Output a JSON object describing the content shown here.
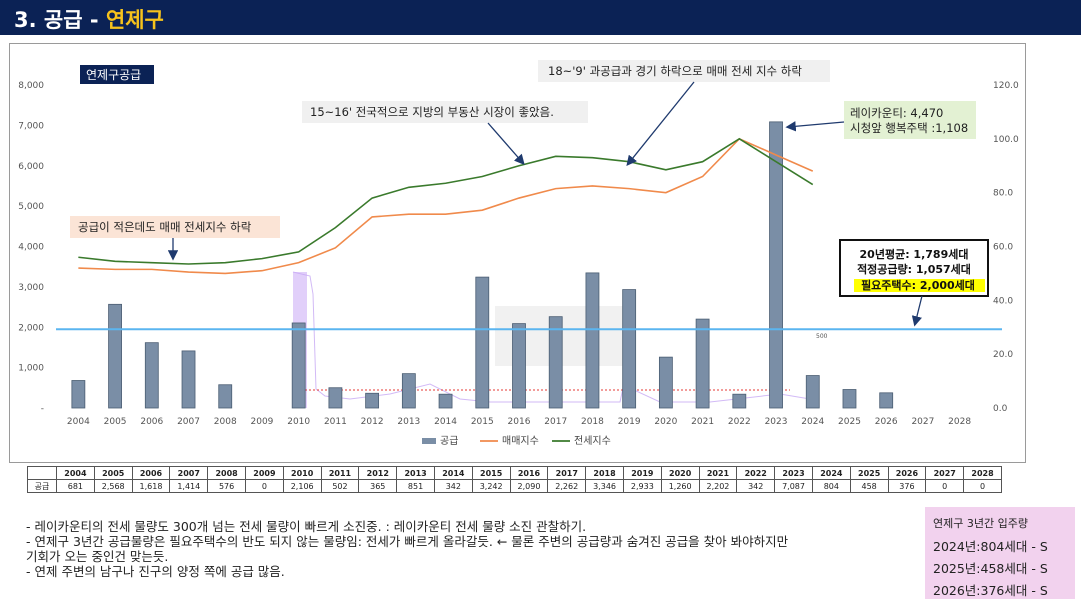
{
  "header": {
    "title_prefix": "3. 공급 - ",
    "title_accent": "연제구"
  },
  "chart_data": {
    "type": "bar",
    "title": "연제구공급",
    "categories": [
      "2004",
      "2005",
      "2006",
      "2007",
      "2008",
      "2009",
      "2010",
      "2011",
      "2012",
      "2013",
      "2014",
      "2015",
      "2016",
      "2017",
      "2018",
      "2019",
      "2020",
      "2021",
      "2022",
      "2023",
      "2024",
      "2025",
      "2026",
      "2027",
      "2028"
    ],
    "series": [
      {
        "name": "공급",
        "kind": "bar",
        "axis": "left",
        "color": "#7a8ea6",
        "values": [
          681,
          2568,
          1618,
          1414,
          576,
          0,
          2106,
          502,
          365,
          851,
          342,
          3242,
          2090,
          2262,
          3346,
          2933,
          1260,
          2202,
          342,
          7087,
          804,
          458,
          376,
          0,
          0
        ]
      },
      {
        "name": "매매지수",
        "kind": "line",
        "axis": "right",
        "color": "#f08a4b",
        "values": [
          52,
          51.5,
          51.5,
          50.5,
          50,
          51,
          54,
          59.5,
          71,
          72,
          72,
          73.5,
          78,
          81.5,
          82.5,
          81.5,
          80,
          86,
          100,
          94,
          88,
          null,
          null,
          null,
          null
        ]
      },
      {
        "name": "전세지수",
        "kind": "line",
        "axis": "right",
        "color": "#3a7a2c",
        "values": [
          56,
          54.5,
          54,
          53.5,
          54,
          55.5,
          58,
          67,
          78,
          82,
          83.5,
          86,
          90,
          93.5,
          93,
          91.5,
          88.5,
          91.5,
          100,
          91.5,
          83,
          null,
          null,
          null,
          null
        ]
      }
    ],
    "ylim": [
      0,
      8000
    ],
    "ylim_right": [
      0,
      120
    ],
    "yticks": [
      "-",
      "1,000",
      "2,000",
      "3,000",
      "4,000",
      "5,000",
      "6,000",
      "7,000",
      "8,000"
    ],
    "yticks_right": [
      "0.0",
      "20.0",
      "40.0",
      "60.0",
      "80.0",
      "100.0",
      "120.0"
    ],
    "reference_line": {
      "value": 1950,
      "color": "#5bb5f0"
    },
    "inline_label": "500",
    "legend_position": "bottom",
    "annotations": {
      "a1": "18~'9' 과공급과 경기 하락으로 매매 전세 지수 하락",
      "a2": "15~16' 전국적으로 지방의 부동산 시장이 좋았음.",
      "a3": "공급이 적은데도 매매 전세지수 하락",
      "a4_line1": "레이카운티: 4,470",
      "a4_line2": "시청앞 행복주택 :1,108",
      "a5_line1": "20년평균: 1,789세대",
      "a5_line2": "적정공급량: 1,057세대",
      "a5_line3": "필요주택수: 2,000세대"
    },
    "colors": {
      "bar": "#7a8ea6",
      "annotation_bg": "#f0f0f0",
      "orange_box": "#fbe4d6",
      "green_box": "#e3f1d3",
      "highlight": "#ffff00"
    }
  },
  "table": {
    "row_label": "공급",
    "years": [
      "2004",
      "2005",
      "2006",
      "2007",
      "2008",
      "2009",
      "2010",
      "2011",
      "2012",
      "2013",
      "2014",
      "2015",
      "2016",
      "2017",
      "2018",
      "2019",
      "2020",
      "2021",
      "2022",
      "2023",
      "2024",
      "2025",
      "2026",
      "2027",
      "2028"
    ],
    "values": [
      "681",
      "2,568",
      "1,618",
      "1,414",
      "576",
      "0",
      "2,106",
      "502",
      "365",
      "851",
      "342",
      "3,242",
      "2,090",
      "2,262",
      "3,346",
      "2,933",
      "1,260",
      "2,202",
      "342",
      "7,087",
      "804",
      "458",
      "376",
      "0",
      "0"
    ]
  },
  "notes": {
    "line1": "- 레이카운티의 전세 물량도 300개 넘는 전세 물량이 빠르게 소진중. : 레이카운티 전세 물량 소진 관찰하기.",
    "line2": "- 연제구 3년간 공급물량은 필요주택수의 반도 되지 않는 물량임: 전세가 빠르게 올라갈듯. ← 물론 주변의 공급량과 숨겨진 공급을 찾아 봐야하지만",
    "line3": "기회가 오는 중인건 맞는듯.",
    "line4": "-  연제 주변의 남구나 진구의 양정 쪽에 공급 많음."
  },
  "side_box": {
    "title": "연제구 3년간 입주량",
    "line1": "2024년:804세대 - S",
    "line2": "2025년:458세대 - S",
    "line3": "2026년:376세대 - S"
  }
}
